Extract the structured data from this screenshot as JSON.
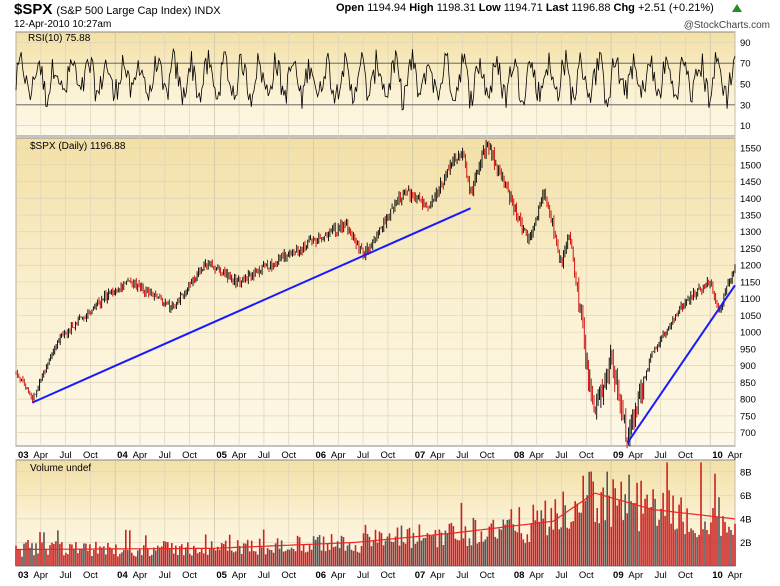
{
  "header": {
    "symbol": "$SPX",
    "name": "(S&P 500 Large Cap Index) INDX",
    "date": "12-Apr-2010 10:27am",
    "open_label": "Open",
    "open": "1194.94",
    "high_label": "High",
    "high": "1198.31",
    "low_label": "Low",
    "low": "1194.71",
    "last_label": "Last",
    "last": "1196.88",
    "chg_label": "Chg",
    "chg": "+2.51 (+0.21%)",
    "credit": "@StockCharts.com"
  },
  "chart_data": [
    {
      "type": "line",
      "title": "RSI(10) 75.88",
      "y_ticks": [
        10,
        30,
        50,
        70,
        90
      ],
      "ylim": [
        0,
        100
      ],
      "reference_lines": [
        30,
        70
      ],
      "last_value": 75.88
    },
    {
      "type": "line",
      "title": "$SPX (Daily) 1196.88",
      "y_ticks": [
        700,
        750,
        800,
        850,
        900,
        950,
        1000,
        1050,
        1100,
        1150,
        1200,
        1250,
        1300,
        1350,
        1400,
        1450,
        1500,
        1550
      ],
      "ylim": [
        660,
        1580
      ],
      "x_ticks": [
        "03",
        "Apr",
        "Jul",
        "Oct",
        "04",
        "Apr",
        "Jul",
        "Oct",
        "05",
        "Apr",
        "Jul",
        "Oct",
        "06",
        "Apr",
        "Jul",
        "Oct",
        "07",
        "Apr",
        "Jul",
        "Oct",
        "08",
        "Apr",
        "Jul",
        "Oct",
        "09",
        "Apr",
        "Jul",
        "Oct",
        "10",
        "Apr"
      ],
      "x_range": [
        "2003-01",
        "2010-04"
      ],
      "keypoints": [
        {
          "x": "2003-01",
          "y": 880
        },
        {
          "x": "2003-03",
          "y": 800
        },
        {
          "x": "2003-06",
          "y": 975
        },
        {
          "x": "2003-12",
          "y": 1110
        },
        {
          "x": "2004-03",
          "y": 1150
        },
        {
          "x": "2004-08",
          "y": 1070
        },
        {
          "x": "2004-12",
          "y": 1210
        },
        {
          "x": "2005-04",
          "y": 1150
        },
        {
          "x": "2005-12",
          "y": 1260
        },
        {
          "x": "2006-05",
          "y": 1320
        },
        {
          "x": "2006-07",
          "y": 1230
        },
        {
          "x": "2006-12",
          "y": 1420
        },
        {
          "x": "2007-03",
          "y": 1380
        },
        {
          "x": "2007-07",
          "y": 1550
        },
        {
          "x": "2007-08",
          "y": 1410
        },
        {
          "x": "2007-10",
          "y": 1565
        },
        {
          "x": "2008-03",
          "y": 1270
        },
        {
          "x": "2008-05",
          "y": 1425
        },
        {
          "x": "2008-07",
          "y": 1200
        },
        {
          "x": "2008-08",
          "y": 1300
        },
        {
          "x": "2008-10",
          "y": 900
        },
        {
          "x": "2008-11",
          "y": 750
        },
        {
          "x": "2009-01",
          "y": 930
        },
        {
          "x": "2009-03",
          "y": 676
        },
        {
          "x": "2009-06",
          "y": 940
        },
        {
          "x": "2009-10",
          "y": 1090
        },
        {
          "x": "2010-01",
          "y": 1150
        },
        {
          "x": "2010-02",
          "y": 1060
        },
        {
          "x": "2010-04",
          "y": 1196.88
        }
      ],
      "trendlines": [
        {
          "from": {
            "x": "2003-03",
            "y": 790
          },
          "to": {
            "x": "2007-08",
            "y": 1370
          },
          "color": "#1a1aff"
        },
        {
          "from": {
            "x": "2009-03",
            "y": 670
          },
          "to": {
            "x": "2010-04",
            "y": 1140
          },
          "color": "#1a1aff"
        }
      ]
    },
    {
      "type": "bar",
      "title": "Volume undef",
      "y_ticks": [
        "2B",
        "4B",
        "6B",
        "8B"
      ],
      "ylim": [
        0,
        9
      ],
      "levels": [
        {
          "x": "2003-01",
          "y": 1.4
        },
        {
          "x": "2005-01",
          "y": 1.5
        },
        {
          "x": "2006-06",
          "y": 2.0
        },
        {
          "x": "2007-06",
          "y": 2.8
        },
        {
          "x": "2008-06",
          "y": 3.8
        },
        {
          "x": "2008-11",
          "y": 6.2
        },
        {
          "x": "2009-03",
          "y": 5.4
        },
        {
          "x": "2009-06",
          "y": 4.8
        },
        {
          "x": "2010-04",
          "y": 4.0
        }
      ],
      "bar_color": "#cc2222",
      "ma_color": "#ee2222"
    }
  ],
  "colors": {
    "panel_bg": "#f5e6b6",
    "panel_bg_light": "#fdf7e2",
    "trendline": "#1a1aff",
    "price": "#000000",
    "price_down": "#cc0000",
    "volume": "#cc2222",
    "header_up_arrow": "#2a8a2a"
  }
}
